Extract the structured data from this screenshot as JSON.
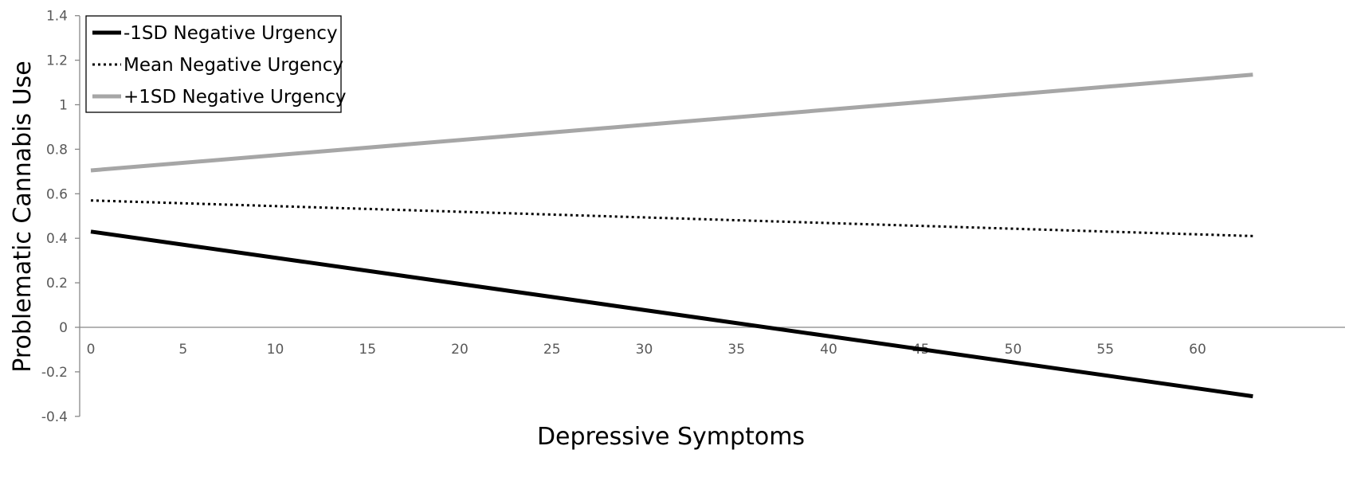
{
  "chart_data": {
    "type": "line",
    "title": "",
    "xlabel": "Depressive Symptoms",
    "ylabel": "Problematic Cannabis Use",
    "xlim": [
      0,
      63
    ],
    "ylim": [
      -0.4,
      1.4
    ],
    "x_ticks": [
      "0",
      "5",
      "10",
      "15",
      "20",
      "25",
      "30",
      "35",
      "40",
      "45",
      "50",
      "55",
      "60"
    ],
    "y_ticks": [
      "-0.4",
      "-0.2",
      "0",
      "0.2",
      "0.4",
      "0.6",
      "0.8",
      "1",
      "1.2",
      "1.4"
    ],
    "grid": false,
    "legend_position": "top-left",
    "series": [
      {
        "name": "-1SD Negative Urgency",
        "x": [
          0,
          63
        ],
        "values": [
          0.43,
          -0.31
        ],
        "color": "#000000",
        "style": "solid"
      },
      {
        "name": "Mean Negative Urgency",
        "x": [
          0,
          63
        ],
        "values": [
          0.57,
          0.41
        ],
        "color": "#000000",
        "style": "dotted"
      },
      {
        "name": "+1SD Negative Urgency",
        "x": [
          0,
          63
        ],
        "values": [
          0.705,
          1.135
        ],
        "color": "#a6a6a6",
        "style": "solid"
      }
    ]
  }
}
